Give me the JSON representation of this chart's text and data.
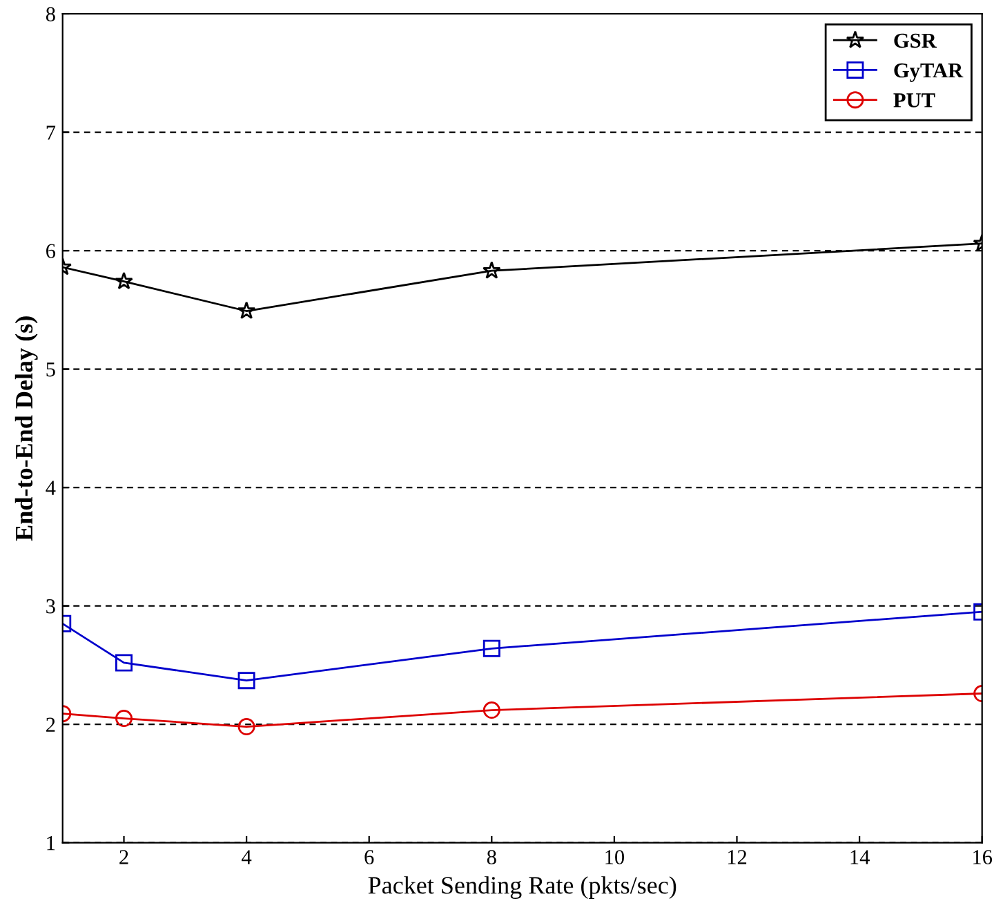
{
  "chart_data": {
    "type": "line",
    "xlabel": "Packet Sending Rate (pkts/sec)",
    "ylabel": "End-to-End Delay (s)",
    "x": [
      1,
      2,
      4,
      8,
      16
    ],
    "series": [
      {
        "name": "GSR",
        "color": "#000000",
        "marker": "star",
        "values": [
          5.86,
          5.74,
          5.49,
          5.83,
          6.06
        ]
      },
      {
        "name": "GyTAR",
        "color": "#0000cc",
        "marker": "square",
        "values": [
          2.85,
          2.52,
          2.37,
          2.64,
          2.95
        ]
      },
      {
        "name": "PUT",
        "color": "#dd0000",
        "marker": "circle",
        "values": [
          2.09,
          2.05,
          1.98,
          2.12,
          2.26
        ]
      }
    ],
    "xlim": [
      1,
      16
    ],
    "xticks": [
      2,
      4,
      6,
      8,
      10,
      12,
      14,
      16
    ],
    "ylim": [
      1,
      8
    ],
    "yticks": [
      1,
      2,
      3,
      4,
      5,
      6,
      7,
      8
    ],
    "grid": "y",
    "legend": "top right",
    "line_style": "solid"
  }
}
